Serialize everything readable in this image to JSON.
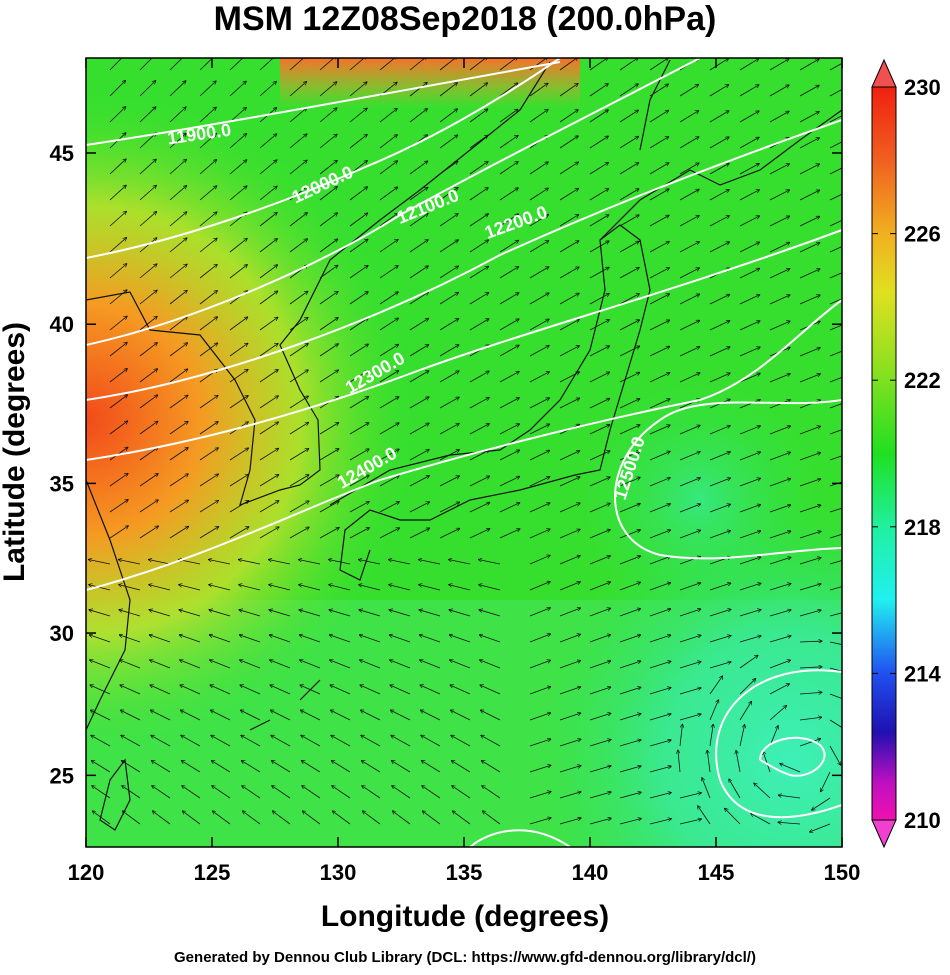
{
  "map": {
    "title": "MSM 12Z08Sep2018 (200.0hPa)",
    "x_label": "Longitude (degrees)",
    "y_label": "Latitude  (degrees)",
    "projection": "mercator",
    "xlim": [
      120,
      150
    ],
    "xticks": [
      120,
      125,
      130,
      135,
      140,
      145,
      150
    ],
    "ylim": [
      22.4,
      47.6
    ],
    "yticks": [
      25,
      30,
      35,
      40,
      45
    ],
    "colorbar": {
      "lim": [
        210,
        230
      ],
      "ticks": [
        210,
        214,
        218,
        222,
        226,
        230
      ]
    },
    "contour_labels": [
      "11900.0",
      "12000.0",
      "12100.0",
      "12200.0",
      "12300.0",
      "12400.0",
      "12500.0"
    ]
  },
  "footer": "Generated by Dennou Club Library (DCL: https://www.gfd-dennou.org/library/dcl/)"
}
